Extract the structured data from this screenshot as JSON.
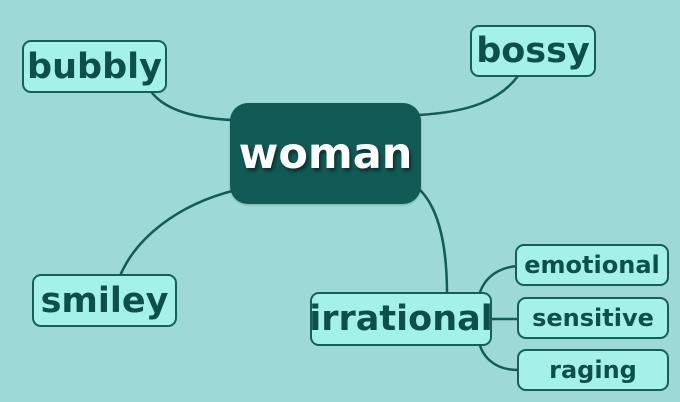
{
  "diagram": {
    "type": "mind-map",
    "colors": {
      "background": "#9dd9d6",
      "root_fill": "#115a56",
      "leaf_fill": "#a4f1ea",
      "outline": "#135c57",
      "root_text": "#ffffff",
      "leaf_text": "#0d4f4b"
    },
    "root": {
      "label": "woman"
    },
    "branches": [
      {
        "label": "bubbly"
      },
      {
        "label": "bossy"
      },
      {
        "label": "smiley"
      },
      {
        "label": "irrational",
        "children": [
          {
            "label": "emotional"
          },
          {
            "label": "sensitive"
          },
          {
            "label": "raging"
          }
        ]
      }
    ]
  }
}
